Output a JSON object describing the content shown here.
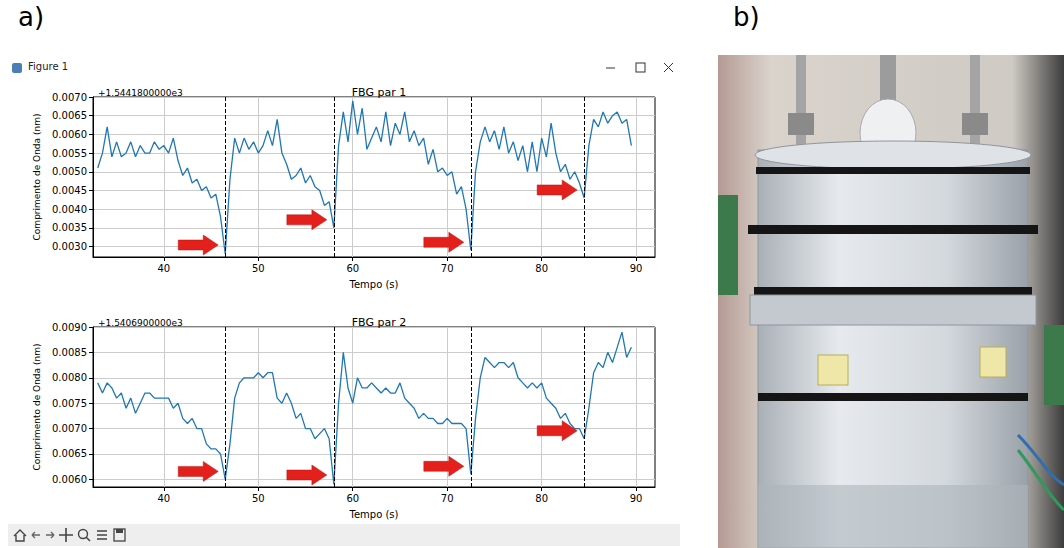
{
  "panels": {
    "a": "a)",
    "b": "b)"
  },
  "window_title": "Figure 1",
  "chart_data": [
    {
      "type": "line",
      "title": "FBG par 1",
      "annotations": [
        "+1.5441800000e3"
      ],
      "x_label": "Tempo (s)",
      "y_label": "Comprimento de Onda (nm)",
      "x": [
        33,
        33.5,
        34,
        34.5,
        35,
        35.5,
        36,
        36.5,
        37,
        37.5,
        38,
        38.5,
        39,
        39.5,
        40,
        40.5,
        41,
        41.5,
        42,
        42.5,
        43,
        43.5,
        44,
        44.5,
        45,
        45.5,
        46,
        46.5,
        47,
        47.5,
        48,
        48.5,
        49,
        49.5,
        50,
        50.5,
        51,
        51.5,
        52,
        52.5,
        53,
        53.5,
        54,
        54.5,
        55,
        55.5,
        56,
        56.5,
        57,
        57.5,
        58,
        58.5,
        59,
        59.5,
        60,
        60.5,
        61,
        61.5,
        62,
        62.5,
        63,
        63.5,
        64,
        64.5,
        65,
        65.5,
        66,
        66.5,
        67,
        67.5,
        68,
        68.5,
        69,
        69.5,
        70,
        70.5,
        71,
        71.5,
        72,
        72.5,
        73,
        73.5,
        74,
        74.5,
        75,
        75.5,
        76,
        76.5,
        77,
        77.5,
        78,
        78.5,
        79,
        79.5,
        80,
        80.5,
        81,
        81.5,
        82,
        82.5,
        83,
        83.5,
        84,
        84.5,
        85,
        85.5,
        86,
        86.5,
        87,
        87.5,
        88,
        88.5,
        89,
        89.5
      ],
      "values": [
        0.0051,
        0.0055,
        0.0062,
        0.0054,
        0.0058,
        0.0054,
        0.0055,
        0.0058,
        0.0054,
        0.0057,
        0.0055,
        0.0055,
        0.0058,
        0.0056,
        0.0057,
        0.0055,
        0.0059,
        0.0053,
        0.0049,
        0.0051,
        0.0047,
        0.0048,
        0.0045,
        0.0046,
        0.0043,
        0.0044,
        0.0038,
        0.0028,
        0.0048,
        0.0059,
        0.0055,
        0.0059,
        0.0056,
        0.0058,
        0.0055,
        0.0057,
        0.0061,
        0.0057,
        0.0064,
        0.0055,
        0.0052,
        0.0048,
        0.0049,
        0.0051,
        0.0047,
        0.0049,
        0.0046,
        0.0045,
        0.0041,
        0.0042,
        0.0035,
        0.0057,
        0.0066,
        0.0058,
        0.0069,
        0.006,
        0.0067,
        0.0056,
        0.0059,
        0.0062,
        0.0058,
        0.0066,
        0.0057,
        0.0063,
        0.006,
        0.0066,
        0.0058,
        0.0061,
        0.0057,
        0.0059,
        0.0052,
        0.0056,
        0.005,
        0.0051,
        0.0049,
        0.005,
        0.0044,
        0.0046,
        0.004,
        0.0029,
        0.005,
        0.0058,
        0.0062,
        0.0058,
        0.0061,
        0.0056,
        0.0062,
        0.0055,
        0.0058,
        0.0053,
        0.0057,
        0.005,
        0.0058,
        0.005,
        0.0059,
        0.0054,
        0.0063,
        0.0055,
        0.005,
        0.0052,
        0.0048,
        0.005,
        0.0047,
        0.0043,
        0.0057,
        0.0064,
        0.0062,
        0.0066,
        0.0063,
        0.0065,
        0.0066,
        0.0063,
        0.0064,
        0.0057
      ],
      "color": "#1f77b4",
      "marker": "none",
      "line_style": "solid",
      "vlines": [
        46.5,
        58,
        72.5,
        84.5
      ],
      "xlim": [
        32.5,
        92
      ],
      "xticks": [
        40,
        50,
        60,
        70,
        80,
        90
      ],
      "ylim": [
        0.00272,
        0.007
      ],
      "yticks": [
        {
          "value": 0.003,
          "label": "0.0030"
        },
        {
          "value": 0.0035,
          "label": "0.0035"
        },
        {
          "value": 0.004,
          "label": "0.0040"
        },
        {
          "value": 0.0045,
          "label": "0.0045"
        },
        {
          "value": 0.005,
          "label": "0.0050"
        },
        {
          "value": 0.0055,
          "label": "0.0055"
        },
        {
          "value": 0.006,
          "label": "0.0060"
        },
        {
          "value": 0.0065,
          "label": "0.0065"
        },
        {
          "value": 0.007,
          "label": "0.0070"
        }
      ],
      "grid": true
    },
    {
      "type": "line",
      "title": "FBG par 2",
      "annotations": [
        "+1.5406900000e3"
      ],
      "x_label": "Tempo (s)",
      "y_label": "Comprimento de Onda (nm)",
      "x": [
        33,
        33.5,
        34,
        34.5,
        35,
        35.5,
        36,
        36.5,
        37,
        37.5,
        38,
        38.5,
        39,
        39.5,
        40,
        40.5,
        41,
        41.5,
        42,
        42.5,
        43,
        43.5,
        44,
        44.5,
        45,
        45.5,
        46,
        46.5,
        47,
        47.5,
        48,
        48.5,
        49,
        49.5,
        50,
        50.5,
        51,
        51.5,
        52,
        52.5,
        53,
        53.5,
        54,
        54.5,
        55,
        55.5,
        56,
        56.5,
        57,
        57.5,
        58,
        58.5,
        59,
        59.5,
        60,
        60.5,
        61,
        61.5,
        62,
        62.5,
        63,
        63.5,
        64,
        64.5,
        65,
        65.5,
        66,
        66.5,
        67,
        67.5,
        68,
        68.5,
        69,
        69.5,
        70,
        70.5,
        71,
        71.5,
        72,
        72.5,
        73,
        73.5,
        74,
        74.5,
        75,
        75.5,
        76,
        76.5,
        77,
        77.5,
        78,
        78.5,
        79,
        79.5,
        80,
        80.5,
        81,
        81.5,
        82,
        82.5,
        83,
        83.5,
        84,
        84.5,
        85,
        85.5,
        86,
        86.5,
        87,
        87.5,
        88,
        88.5,
        89,
        89.5
      ],
      "values": [
        0.0079,
        0.0077,
        0.0079,
        0.0078,
        0.0076,
        0.0077,
        0.0074,
        0.0076,
        0.0073,
        0.0075,
        0.0077,
        0.0077,
        0.0076,
        0.0076,
        0.0076,
        0.0076,
        0.0074,
        0.0075,
        0.0072,
        0.0071,
        0.0072,
        0.007,
        0.007,
        0.0067,
        0.0066,
        0.0066,
        0.0065,
        0.006,
        0.0067,
        0.0076,
        0.0079,
        0.008,
        0.008,
        0.008,
        0.0081,
        0.008,
        0.0081,
        0.0081,
        0.0076,
        0.0075,
        0.0077,
        0.0075,
        0.0072,
        0.0073,
        0.007,
        0.007,
        0.0068,
        0.0069,
        0.007,
        0.0068,
        0.0059,
        0.0075,
        0.0085,
        0.0078,
        0.0075,
        0.008,
        0.0078,
        0.0078,
        0.0079,
        0.0078,
        0.0077,
        0.0078,
        0.0077,
        0.0077,
        0.0079,
        0.0076,
        0.0075,
        0.0074,
        0.0072,
        0.0073,
        0.0072,
        0.0072,
        0.0071,
        0.0071,
        0.0072,
        0.0071,
        0.0071,
        0.0071,
        0.007,
        0.0061,
        0.0072,
        0.008,
        0.0084,
        0.0083,
        0.0082,
        0.0083,
        0.0083,
        0.0082,
        0.0083,
        0.008,
        0.0079,
        0.0078,
        0.0079,
        0.0078,
        0.0079,
        0.0076,
        0.0075,
        0.0074,
        0.0072,
        0.0073,
        0.0071,
        0.007,
        0.007,
        0.0068,
        0.0074,
        0.0081,
        0.0083,
        0.0082,
        0.0085,
        0.0083,
        0.0086,
        0.0089,
        0.0084,
        0.0086
      ],
      "color": "#1f77b4",
      "marker": "none",
      "line_style": "solid",
      "vlines": [
        46.5,
        58,
        72.5,
        84.5
      ],
      "xlim": [
        32.5,
        92
      ],
      "xticks": [
        40,
        50,
        60,
        70,
        80,
        90
      ],
      "ylim": [
        0.00585,
        0.009
      ],
      "yticks": [
        {
          "value": 0.006,
          "label": "0.0060"
        },
        {
          "value": 0.0065,
          "label": "0.0065"
        },
        {
          "value": 0.007,
          "label": "0.0070"
        },
        {
          "value": 0.0075,
          "label": "0.0075"
        },
        {
          "value": 0.008,
          "label": "0.0080"
        },
        {
          "value": 0.0085,
          "label": "0.0085"
        },
        {
          "value": 0.009,
          "label": "0.0090"
        }
      ],
      "grid": true
    }
  ]
}
